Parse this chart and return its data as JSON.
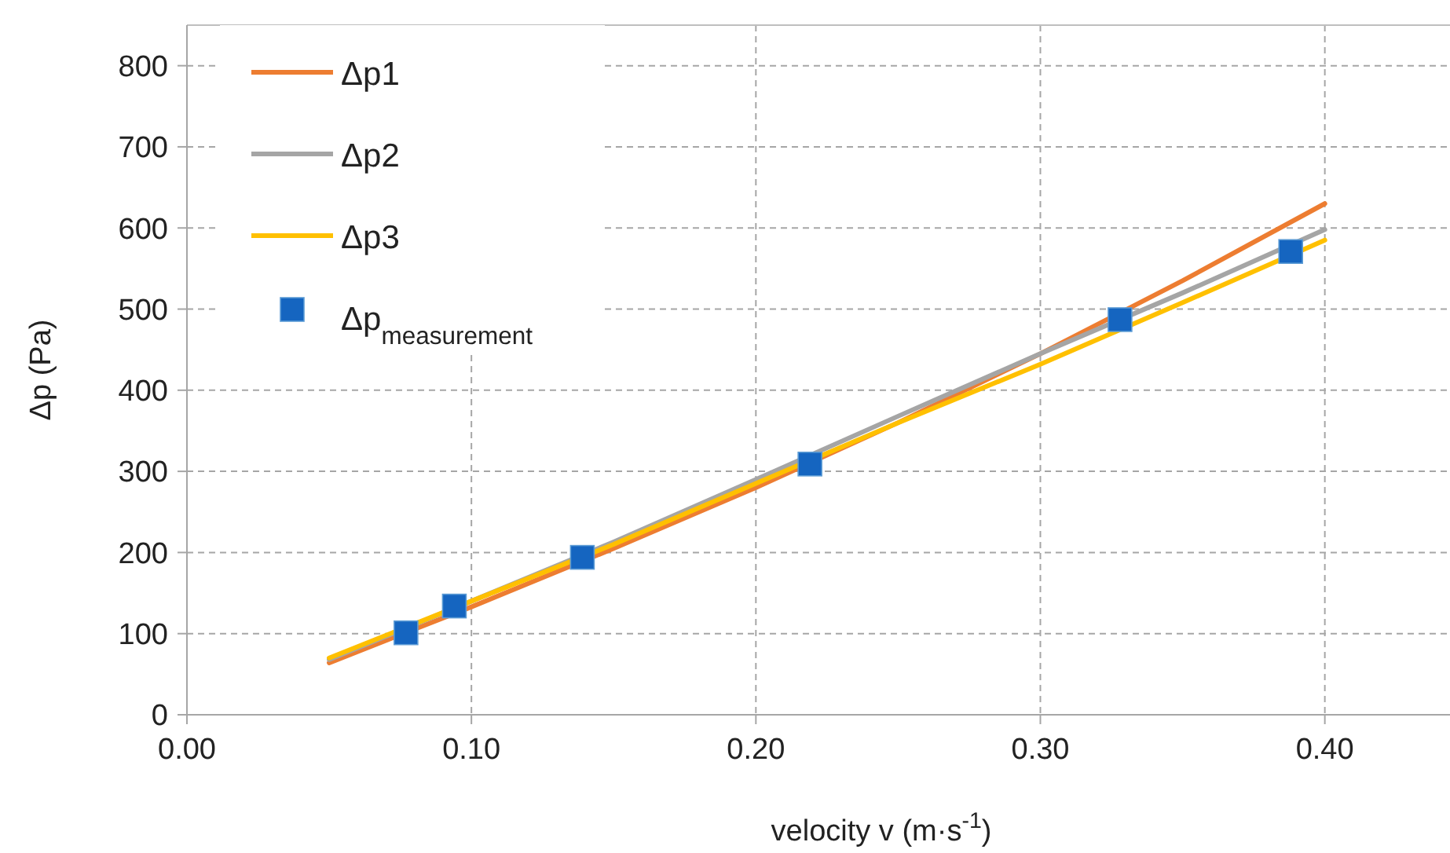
{
  "chart_data": {
    "type": "line",
    "xlabel": "velocity v (m·s$^{-1}$)",
    "ylabel": "Δp (Pa)",
    "xlim": [
      0,
      0.444
    ],
    "xticks": [
      {
        "value": 0,
        "label": "0.00"
      },
      {
        "value": 0.1,
        "label": "0.10"
      },
      {
        "value": 0.2,
        "label": "0.20"
      },
      {
        "value": 0.3,
        "label": "0.30"
      },
      {
        "value": 0.4,
        "label": "0.40"
      }
    ],
    "ylim": [
      0,
      850
    ],
    "yticks": [
      0,
      100,
      200,
      300,
      400,
      500,
      600,
      700,
      800
    ],
    "grid": true,
    "legend": "top left",
    "line_style": "solid",
    "x": [
      0.05,
      0.1,
      0.15,
      0.2,
      0.25,
      0.3,
      0.35,
      0.4
    ],
    "series": [
      {
        "name": "Δp1",
        "color": "#ed7d31",
        "values": [
          64,
          133,
          205,
          280,
          360,
          445,
          535,
          630
        ]
      },
      {
        "name": "Δp2",
        "color": "#a5a5a5",
        "values": [
          68,
          140,
          213,
          290,
          368,
          445,
          520,
          598
        ]
      },
      {
        "name": "Δp3",
        "color": "#ffc000",
        "values": [
          70,
          140,
          210,
          285,
          360,
          432,
          508,
          585
        ]
      },
      {
        "name": "Δp$_{measurement}$",
        "type": "scatter",
        "marker": "square",
        "color": "#1565c0",
        "x": [
          0.077,
          0.094,
          0.139,
          0.219,
          0.328,
          0.388
        ],
        "values": [
          101,
          134,
          194,
          309,
          487,
          571
        ]
      }
    ]
  }
}
